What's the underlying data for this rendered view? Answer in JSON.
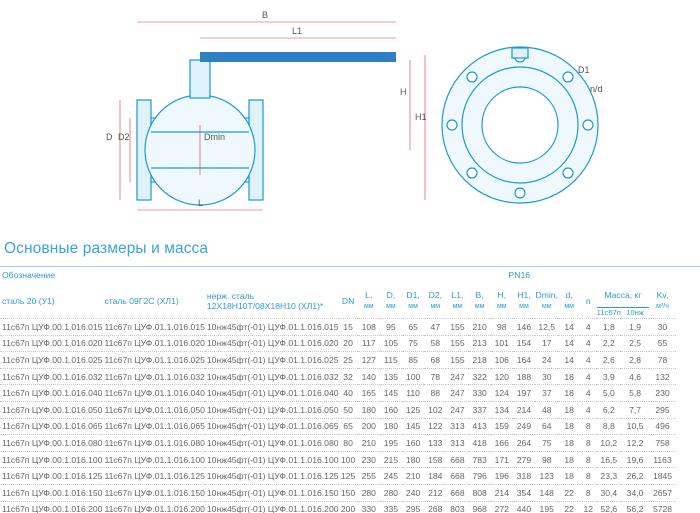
{
  "drawing": {
    "labels": {
      "B": "B",
      "L1": "L1",
      "H": "H",
      "H1": "H1",
      "D": "D",
      "D2": "D2",
      "Dmin": "Dmin",
      "L": "L",
      "D1": "D1",
      "nd": "n/d"
    },
    "line_color": "#1a9ad6",
    "handle_color": "#2f7fc4"
  },
  "title": "Основные размеры и масса",
  "table": {
    "designation": "Обозначение",
    "pressure": "PN16",
    "col_steel20": "сталь 20 (У1)",
    "col_steel09": "сталь 09Г2С (ХЛ1)",
    "col_stainless_1": "нерж. сталь",
    "col_stainless_2": "12Х18Н10Т/08Х18Н10 (ХЛ1)*",
    "dims": [
      {
        "name": "DN",
        "unit": ""
      },
      {
        "name": "L,",
        "unit": "мм"
      },
      {
        "name": "D,",
        "unit": "мм"
      },
      {
        "name": "D1,",
        "unit": "мм"
      },
      {
        "name": "D2,",
        "unit": "мм"
      },
      {
        "name": "L1,",
        "unit": "мм"
      },
      {
        "name": "B,",
        "unit": "мм"
      },
      {
        "name": "H,",
        "unit": "мм"
      },
      {
        "name": "H1,",
        "unit": "мм"
      },
      {
        "name": "Dmin,",
        "unit": "мм"
      },
      {
        "name": "d,",
        "unit": "мм"
      },
      {
        "name": "n",
        "unit": ""
      }
    ],
    "mass": "Масса, кг",
    "mass_a": "11с67п",
    "mass_b": "10нж",
    "kv": "Kv,",
    "kv_unit": "м³/ч",
    "rows": [
      [
        "11с67п ЦУФ.00.1.016.015",
        "11с67п ЦУФ.01.1.016.015",
        "10нж45фт(-01) ЦУФ.01.1.016.015",
        "15",
        "108",
        "95",
        "65",
        "47",
        "155",
        "210",
        "98",
        "146",
        "12,5",
        "14",
        "4",
        "1,8",
        "1,9",
        "30"
      ],
      [
        "11с67п ЦУФ.00.1.016.020",
        "11с67п ЦУФ.01.1.016.020",
        "10нж45фт(-01) ЦУФ.01.1.016.020",
        "20",
        "117",
        "105",
        "75",
        "58",
        "155",
        "213",
        "101",
        "154",
        "17",
        "14",
        "4",
        "2,2",
        "2,5",
        "55"
      ],
      [
        "11с67п ЦУФ.00.1.016.025",
        "11с67п ЦУФ.01.1.016.025",
        "10нж45фт(-01) ЦУФ.01.1.016.025",
        "25",
        "127",
        "115",
        "85",
        "68",
        "155",
        "218",
        "106",
        "164",
        "24",
        "14",
        "4",
        "2,6",
        "2,8",
        "78"
      ],
      [
        "11с67п ЦУФ.00.1.016.032",
        "11с67п ЦУФ.01.1.016.032",
        "10нж45фт(-01) ЦУФ.01.1.016.032",
        "32",
        "140",
        "135",
        "100",
        "78",
        "247",
        "322",
        "120",
        "188",
        "30",
        "18",
        "4",
        "3,9",
        "4,6",
        "132"
      ],
      [
        "11с67п ЦУФ.00.1.016.040",
        "11с67п ЦУФ.01.1.016.040",
        "10нж45фт(-01) ЦУФ.01.1.016.040",
        "40",
        "165",
        "145",
        "110",
        "88",
        "247",
        "330",
        "124",
        "197",
        "37",
        "18",
        "4",
        "5,0",
        "5,8",
        "230"
      ],
      [
        "11с67п ЦУФ.00.1.016.050",
        "11с67п ЦУФ.01.1.016.050",
        "10нж45фт(-01) ЦУФ.01.1.016.050",
        "50",
        "180",
        "160",
        "125",
        "102",
        "247",
        "337",
        "134",
        "214",
        "48",
        "18",
        "4",
        "6,2",
        "7,7",
        "295"
      ],
      [
        "11с67п ЦУФ.00.1.016.065",
        "11с67п ЦУФ.01.1.016.065",
        "10нж45фт(-01) ЦУФ.01.1.016.065",
        "65",
        "200",
        "180",
        "145",
        "122",
        "313",
        "413",
        "159",
        "249",
        "64",
        "18",
        "8",
        "8,8",
        "10,5",
        "496"
      ],
      [
        "11с67п ЦУФ.00.1.016.080",
        "11с67п ЦУФ.01.1.016.080",
        "10нж45фт(-01) ЦУФ.01.1.016.080",
        "80",
        "210",
        "195",
        "160",
        "133",
        "313",
        "418",
        "166",
        "264",
        "75",
        "18",
        "8",
        "10,2",
        "12,2",
        "758"
      ],
      [
        "11с67п ЦУФ.00.1.016.100",
        "11с67п ЦУФ.01.1.016.100",
        "10нж45фт(-01) ЦУФ.01.1.016.100",
        "100",
        "230",
        "215",
        "180",
        "158",
        "668",
        "783",
        "171",
        "279",
        "98",
        "18",
        "8",
        "16,5",
        "19,6",
        "1163"
      ],
      [
        "11с67п ЦУФ.00.1.016.125",
        "11с67п ЦУФ.01.1.016.125",
        "10нж45фт(-01) ЦУФ.01.1.016.125",
        "125",
        "255",
        "245",
        "210",
        "184",
        "668",
        "796",
        "196",
        "318",
        "123",
        "18",
        "8",
        "23,3",
        "26,2",
        "1845"
      ],
      [
        "11с67п ЦУФ.00.1.016.150",
        "11с67п ЦУФ.01.1.016.150",
        "10нж45фт(-01) ЦУФ.01.1.016.150",
        "150",
        "280",
        "280",
        "240",
        "212",
        "668",
        "808",
        "214",
        "354",
        "148",
        "22",
        "8",
        "30,4",
        "34,0",
        "2657"
      ],
      [
        "11с67п ЦУФ.00.1.016.200",
        "11с67п ЦУФ.01.1.016.200",
        "10нж45фт(-01) ЦУФ.01.1.016.200",
        "200",
        "330",
        "335",
        "295",
        "268",
        "803",
        "968",
        "272",
        "440",
        "195",
        "22",
        "12",
        "52,6",
        "56,2",
        "5728"
      ]
    ]
  }
}
